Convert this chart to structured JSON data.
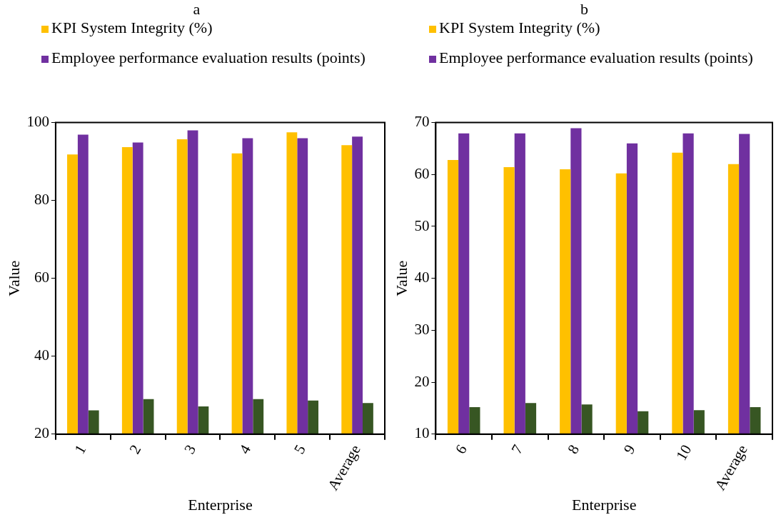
{
  "chart_data": [
    {
      "type": "bar",
      "title": "a",
      "xlabel": "Enterprise",
      "ylabel": "Value",
      "categories": [
        "1",
        "2",
        "3",
        "4",
        "5",
        "Average"
      ],
      "ylim": [
        20,
        100
      ],
      "yticks": [
        20,
        40,
        60,
        80,
        100
      ],
      "grid": false,
      "legend": "top left",
      "series": [
        {
          "name": "KPI System Integrity (%)",
          "color": "#ffc000",
          "values": [
            91.8,
            93.7,
            95.7,
            92.1,
            97.5,
            94.2
          ]
        },
        {
          "name": "Employee performance evaluation results (points)",
          "color": "#7030a0",
          "values": [
            96.9,
            94.9,
            98.0,
            96.0,
            96.0,
            96.4
          ]
        },
        {
          "color": "#375623",
          "values": [
            26.1,
            29.0,
            27.1,
            29.0,
            28.6,
            28.0
          ]
        }
      ]
    },
    {
      "type": "bar",
      "title": "b",
      "xlabel": "Enterprise",
      "ylabel": "Value",
      "categories": [
        "6",
        "7",
        "8",
        "9",
        "10",
        "Average"
      ],
      "ylim": [
        10,
        70
      ],
      "yticks": [
        10,
        20,
        30,
        40,
        50,
        60,
        70
      ],
      "grid": false,
      "legend": "top left",
      "series": [
        {
          "name": "KPI System Integrity (%)",
          "color": "#ffc000",
          "values": [
            62.8,
            61.4,
            61.0,
            60.2,
            64.2,
            62.0
          ]
        },
        {
          "name": "Employee performance evaluation results (points)",
          "color": "#7030a0",
          "values": [
            67.9,
            67.9,
            68.9,
            66.0,
            67.9,
            67.8
          ]
        },
        {
          "color": "#375623",
          "values": [
            15.2,
            16.0,
            15.7,
            14.4,
            14.6,
            15.2
          ]
        }
      ]
    }
  ]
}
